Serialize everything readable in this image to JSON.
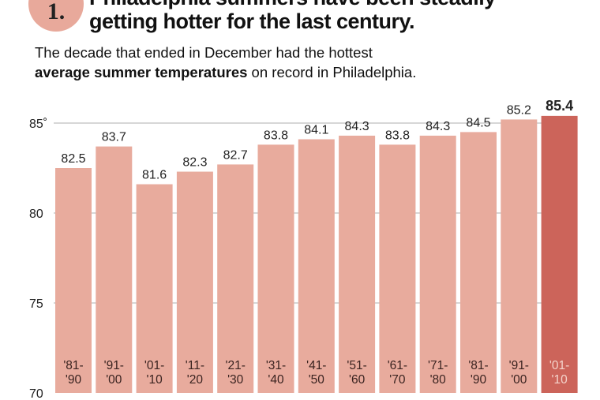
{
  "header": {
    "badge_number": "1.",
    "headline_line1": "Philadelphia summers have been steadily",
    "headline_line2": "getting hotter for the last century.",
    "subtitle_line1": "The decade that ended in December had the hottest",
    "subtitle_bold": "average summer temperatures",
    "subtitle_rest": " on record in Philadelphia."
  },
  "colors": {
    "bar": "#e8ab9d",
    "highlight_bar": "#cc645a",
    "highlight_label": "#f4d4cc",
    "gridline": "#bfbfbf",
    "badge": "#e8a99b"
  },
  "chart_data": {
    "type": "bar",
    "categories": [
      [
        "'81-",
        "'90"
      ],
      [
        "'91-",
        "'00"
      ],
      [
        "'01-",
        "'10"
      ],
      [
        "'11-",
        "'20"
      ],
      [
        "'21-",
        "'30"
      ],
      [
        "'31-",
        "'40"
      ],
      [
        "'41-",
        "'50"
      ],
      [
        "'51-",
        "'60"
      ],
      [
        "'61-",
        "'70"
      ],
      [
        "'71-",
        "'80"
      ],
      [
        "'81-",
        "'90"
      ],
      [
        "'91-",
        "'00"
      ],
      [
        "'01-",
        "'10"
      ]
    ],
    "values": [
      82.5,
      83.7,
      81.6,
      82.3,
      82.7,
      83.8,
      84.1,
      84.3,
      83.8,
      84.3,
      84.5,
      85.2,
      85.4
    ],
    "highlight_index": 12,
    "ylim": [
      70,
      85.5
    ],
    "yticks": [
      70,
      75,
      80,
      85
    ],
    "ytick_labels": [
      "70",
      "75",
      "80",
      "85˚"
    ],
    "grid": true
  }
}
